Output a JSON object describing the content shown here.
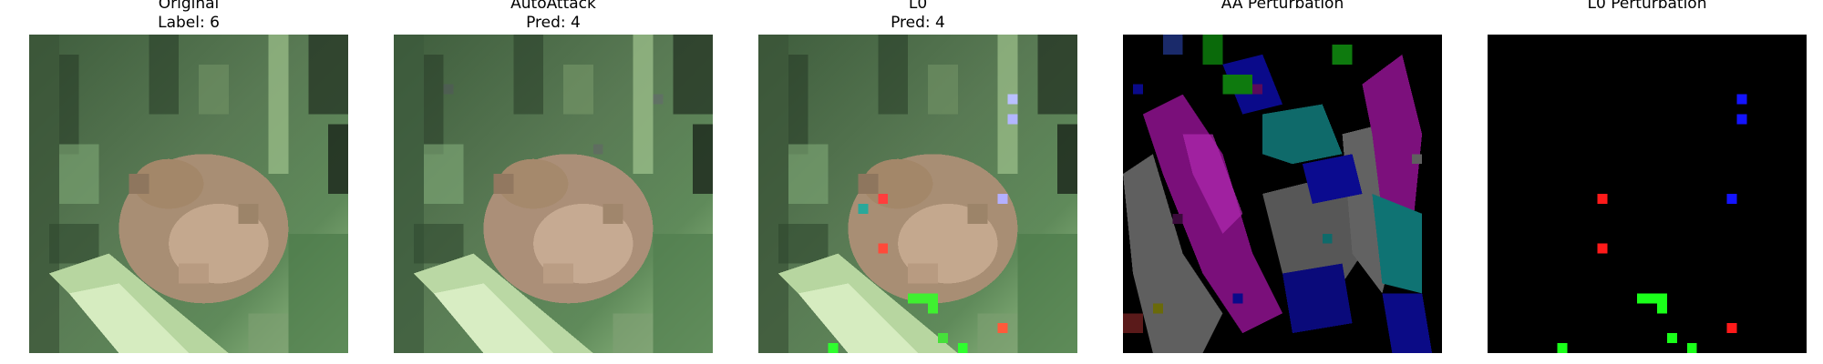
{
  "panels": [
    {
      "title": "Original\nLabel: 6",
      "image": "frog photo (CIFAR-10, 32x32 upscaled)"
    },
    {
      "title": "AutoAttack\nPred: 4",
      "image": "frog photo with subtle AutoAttack perturbation"
    },
    {
      "title": "L0\nPred: 4",
      "image": "frog photo with a few sparse colored pixels changed"
    },
    {
      "title": "AA Perturbation",
      "image": "dense multicolor noise map (purple, blue, teal, gray, green) on black"
    },
    {
      "title": "L0 Perturbation",
      "image": "black map with a few sparse colored pixels"
    }
  ],
  "colors": {
    "l0_red": "#ff1a1a",
    "l0_green": "#1aff1a",
    "l0_blue": "#1414ff"
  }
}
